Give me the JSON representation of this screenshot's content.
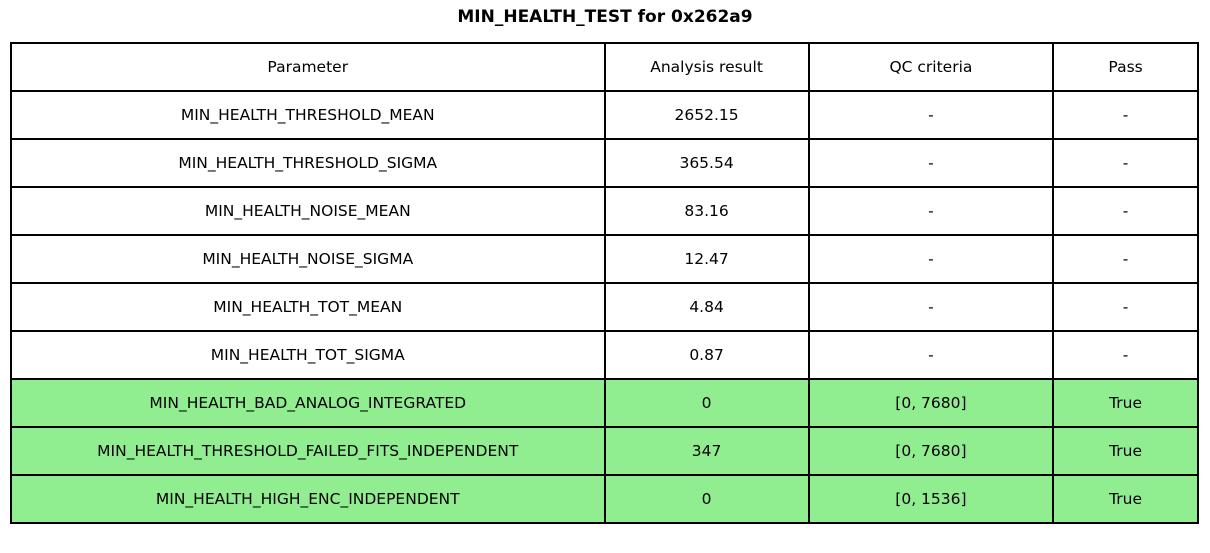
{
  "title": "MIN_HEALTH_TEST for 0x262a9",
  "table": {
    "headers": {
      "parameter": "Parameter",
      "result": "Analysis result",
      "qc": "QC criteria",
      "pass": "Pass"
    },
    "rows": [
      {
        "parameter": "MIN_HEALTH_THRESHOLD_MEAN",
        "result": "2652.15",
        "qc": "-",
        "pass": "-",
        "highlight": false
      },
      {
        "parameter": "MIN_HEALTH_THRESHOLD_SIGMA",
        "result": "365.54",
        "qc": "-",
        "pass": "-",
        "highlight": false
      },
      {
        "parameter": "MIN_HEALTH_NOISE_MEAN",
        "result": "83.16",
        "qc": "-",
        "pass": "-",
        "highlight": false
      },
      {
        "parameter": "MIN_HEALTH_NOISE_SIGMA",
        "result": "12.47",
        "qc": "-",
        "pass": "-",
        "highlight": false
      },
      {
        "parameter": "MIN_HEALTH_TOT_MEAN",
        "result": "4.84",
        "qc": "-",
        "pass": "-",
        "highlight": false
      },
      {
        "parameter": "MIN_HEALTH_TOT_SIGMA",
        "result": "0.87",
        "qc": "-",
        "pass": "-",
        "highlight": false
      },
      {
        "parameter": "MIN_HEALTH_BAD_ANALOG_INTEGRATED",
        "result": "0",
        "qc": "[0, 7680]",
        "pass": "True",
        "highlight": true
      },
      {
        "parameter": "MIN_HEALTH_THRESHOLD_FAILED_FITS_INDEPENDENT",
        "result": "347",
        "qc": "[0, 7680]",
        "pass": "True",
        "highlight": true
      },
      {
        "parameter": "MIN_HEALTH_HIGH_ENC_INDEPENDENT",
        "result": "0",
        "qc": "[0, 1536]",
        "pass": "True",
        "highlight": true
      }
    ]
  },
  "colors": {
    "pass_green": "#90EE90",
    "border": "#000000",
    "background": "#ffffff",
    "text": "#000000"
  }
}
